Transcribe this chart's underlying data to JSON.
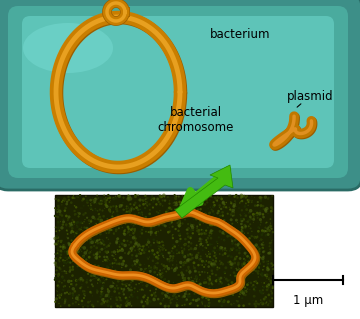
{
  "bacterium_label": "bacterium",
  "plasmid_label": "plasmid",
  "chromosome_label": "bacterial\nchromosome",
  "scale_label": "1 μm",
  "bg_color": "#ffffff",
  "cell_outer_color": "#3d8f88",
  "cell_mid_color": "#4aab9e",
  "cell_inner_color": "#5ec4b8",
  "cell_edge_color": "#2a6b65",
  "chromosome_color": "#c97e00",
  "chromosome_hi": "#e8a020",
  "chromosome_dark": "#9a5e00",
  "plasmid_color": "#c07800",
  "plasmid_hi": "#e09020",
  "micro_bg": "#1c2200",
  "micro_strand_color": "#cc6500",
  "micro_strand_hi": "#ee9020",
  "arrow_color": "#44bb11",
  "arrow_dark": "#228800",
  "label_fontsize": 8.5,
  "scale_fontsize": 8.5
}
